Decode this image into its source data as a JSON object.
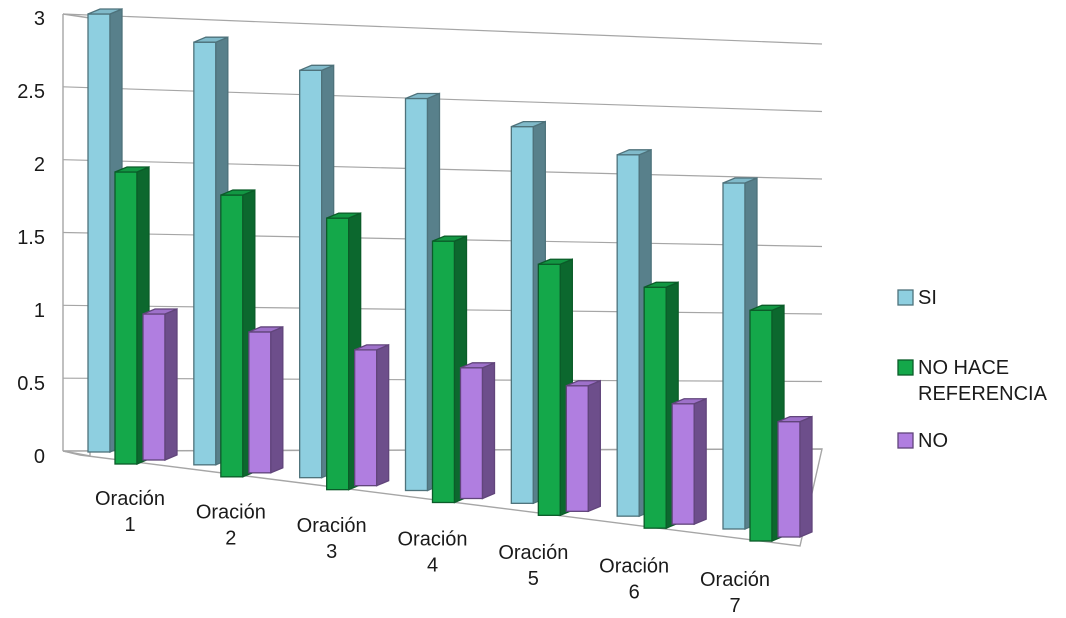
{
  "chart_data": {
    "type": "bar",
    "title": "",
    "xlabel": "",
    "ylabel": "",
    "ylim": [
      0,
      3
    ],
    "yticks": [
      "0",
      "0.5",
      "1",
      "1.5",
      "2",
      "2.5",
      "3"
    ],
    "categories": [
      [
        "Oración",
        "1"
      ],
      [
        "Oración",
        "2"
      ],
      [
        "Oración",
        "3"
      ],
      [
        "Oración",
        "4"
      ],
      [
        "Oración",
        "5"
      ],
      [
        "Oración",
        "6"
      ],
      [
        "Oración",
        "7"
      ]
    ],
    "series": [
      {
        "name": "SI",
        "values": [
          3,
          3,
          3,
          3,
          3,
          3,
          3
        ],
        "color": "#8ecfe0",
        "legend_lines": [
          "SI"
        ]
      },
      {
        "name": "NO HACE REFERENCIA",
        "values": [
          2,
          2,
          2,
          2,
          2,
          2,
          2
        ],
        "color": "#14a84a",
        "legend_lines": [
          "NO HACE",
          "REFERENCIA"
        ]
      },
      {
        "name": "NO",
        "values": [
          1,
          1,
          1,
          1,
          1,
          1,
          1
        ],
        "color": "#b07ee0",
        "legend_lines": [
          "NO"
        ]
      }
    ],
    "grid": true,
    "legend_position": "right",
    "style": "3d-perspective"
  }
}
